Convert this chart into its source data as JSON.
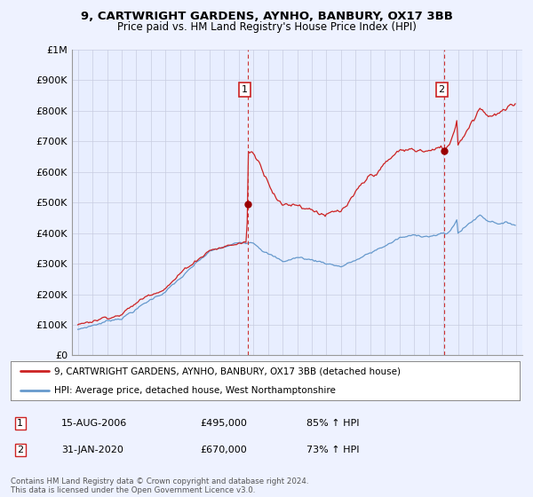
{
  "title": "9, CARTWRIGHT GARDENS, AYNHO, BANBURY, OX17 3BB",
  "subtitle": "Price paid vs. HM Land Registry's House Price Index (HPI)",
  "ylim": [
    0,
    1000000
  ],
  "yticks": [
    0,
    100000,
    200000,
    300000,
    400000,
    500000,
    600000,
    700000,
    800000,
    900000,
    1000000
  ],
  "ytick_labels": [
    "£0",
    "£100K",
    "£200K",
    "£300K",
    "£400K",
    "£500K",
    "£600K",
    "£700K",
    "£800K",
    "£900K",
    "£1M"
  ],
  "hpi_color": "#6699cc",
  "price_color": "#cc2222",
  "marker_color": "#990000",
  "sale1_date": 2006.625,
  "sale1_price": 495000,
  "sale1_label": "1",
  "sale2_date": 2020.083,
  "sale2_price": 670000,
  "sale2_label": "2",
  "vline_color": "#cc3333",
  "legend_line1": "9, CARTWRIGHT GARDENS, AYNHO, BANBURY, OX17 3BB (detached house)",
  "legend_line2": "HPI: Average price, detached house, West Northamptonshire",
  "table_row1_num": "1",
  "table_row1_date": "15-AUG-2006",
  "table_row1_price": "£495,000",
  "table_row1_pct": "85% ↑ HPI",
  "table_row2_num": "2",
  "table_row2_date": "31-JAN-2020",
  "table_row2_price": "£670,000",
  "table_row2_pct": "73% ↑ HPI",
  "footnote": "Contains HM Land Registry data © Crown copyright and database right 2024.\nThis data is licensed under the Open Government Licence v3.0.",
  "bg_color": "#eef2ff",
  "plot_bg_color": "#e8eeff",
  "grid_color": "#c8cce0"
}
